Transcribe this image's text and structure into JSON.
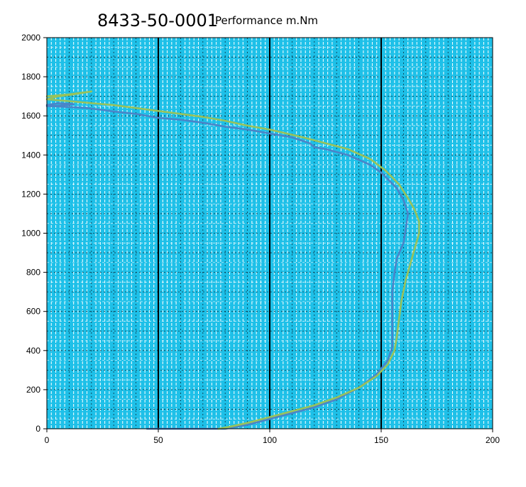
{
  "chart_data": {
    "type": "line",
    "title": "8433-50-0001",
    "subtitle": "Performance m.Nm",
    "xlabel": "",
    "ylabel": "",
    "xlim": [
      0,
      200
    ],
    "ylim": [
      0,
      2000
    ],
    "x_ticks": [
      "0",
      "50",
      "100",
      "150",
      "200"
    ],
    "y_ticks": [
      "0",
      "200",
      "400",
      "600",
      "800",
      "1000",
      "1200",
      "1400",
      "1600",
      "1800",
      "2000"
    ],
    "x_tick_values": [
      0,
      50,
      100,
      150,
      200
    ],
    "y_tick_values": [
      0,
      200,
      400,
      600,
      800,
      1000,
      1200,
      1400,
      1600,
      1800,
      2000
    ],
    "grid": true,
    "background_color": "#1ec0e8",
    "series": [
      {
        "color": "#4a84c8",
        "points": [
          [
            45,
            0
          ],
          [
            53,
            0
          ],
          [
            80,
            0
          ],
          [
            90,
            20
          ],
          [
            100,
            50
          ],
          [
            110,
            80
          ],
          [
            120,
            110
          ],
          [
            130,
            150
          ],
          [
            140,
            210
          ],
          [
            148,
            280
          ],
          [
            153,
            350
          ],
          [
            155,
            420
          ],
          [
            155,
            500
          ],
          [
            155,
            600
          ],
          [
            155,
            700
          ],
          [
            156,
            800
          ],
          [
            157,
            870
          ],
          [
            160,
            950
          ],
          [
            161,
            1020
          ],
          [
            162,
            1100
          ],
          [
            160,
            1170
          ],
          [
            157,
            1230
          ],
          [
            150,
            1310
          ],
          [
            145,
            1350
          ],
          [
            135,
            1400
          ],
          [
            125,
            1430
          ],
          [
            120,
            1440
          ],
          [
            118,
            1460
          ],
          [
            110,
            1490
          ],
          [
            100,
            1510
          ],
          [
            90,
            1530
          ],
          [
            80,
            1545
          ],
          [
            70,
            1565
          ],
          [
            60,
            1580
          ],
          [
            50,
            1590
          ],
          [
            40,
            1610
          ],
          [
            30,
            1622
          ],
          [
            25,
            1630
          ],
          [
            18,
            1640
          ],
          [
            10,
            1645
          ],
          [
            5,
            1648
          ],
          [
            0,
            1650
          ],
          [
            5,
            1652
          ],
          [
            12,
            1660
          ],
          [
            5,
            1665
          ],
          [
            0,
            1655
          ]
        ]
      },
      {
        "color": "#99c25a",
        "points": [
          [
            77,
            0
          ],
          [
            82,
            10
          ],
          [
            90,
            30
          ],
          [
            100,
            60
          ],
          [
            110,
            90
          ],
          [
            120,
            120
          ],
          [
            130,
            160
          ],
          [
            140,
            210
          ],
          [
            148,
            270
          ],
          [
            153,
            330
          ],
          [
            156,
            400
          ],
          [
            157,
            470
          ],
          [
            158,
            560
          ],
          [
            159,
            650
          ],
          [
            161,
            760
          ],
          [
            163,
            840
          ],
          [
            165,
            920
          ],
          [
            167,
            1000
          ],
          [
            167,
            1060
          ],
          [
            165,
            1120
          ],
          [
            162,
            1180
          ],
          [
            158,
            1250
          ],
          [
            152,
            1320
          ],
          [
            145,
            1380
          ],
          [
            135,
            1430
          ],
          [
            125,
            1460
          ],
          [
            115,
            1490
          ],
          [
            100,
            1530
          ],
          [
            90,
            1550
          ],
          [
            80,
            1575
          ],
          [
            70,
            1595
          ],
          [
            60,
            1610
          ],
          [
            50,
            1625
          ],
          [
            40,
            1640
          ],
          [
            30,
            1655
          ],
          [
            20,
            1665
          ],
          [
            10,
            1675
          ],
          [
            0,
            1685
          ],
          [
            5,
            1700
          ],
          [
            12,
            1710
          ],
          [
            20,
            1725
          ],
          [
            10,
            1710
          ],
          [
            0,
            1700
          ]
        ]
      }
    ]
  }
}
